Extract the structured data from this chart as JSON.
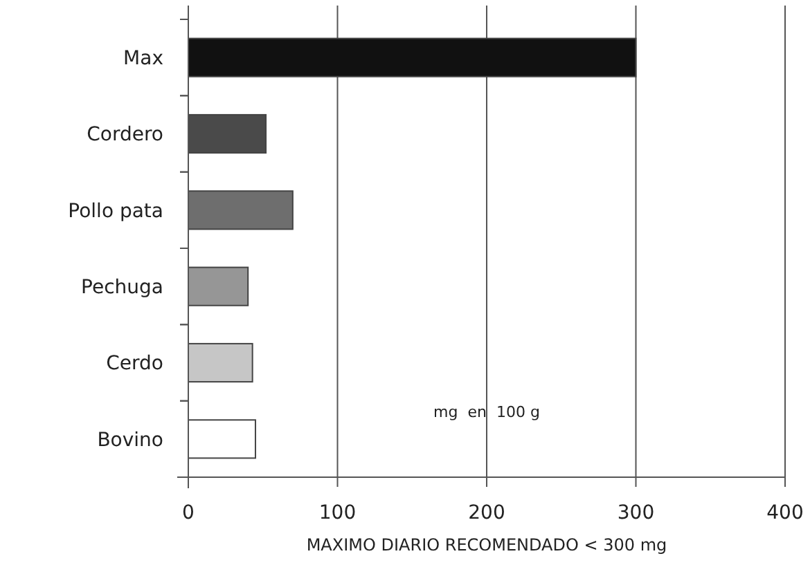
{
  "chart_data": {
    "type": "bar",
    "orientation": "horizontal",
    "categories": [
      "Max",
      "Cordero",
      "Pollo pata",
      "Pechuga",
      "Cerdo",
      "Bovino"
    ],
    "values": [
      300,
      52,
      70,
      40,
      43,
      45
    ],
    "colors": [
      "#111111",
      "#4a4a4a",
      "#6e6e6e",
      "#969696",
      "#c6c6c6",
      "#ffffff"
    ],
    "xlim": [
      0,
      400
    ],
    "xticks": [
      0,
      100,
      200,
      300,
      400
    ],
    "grid": "x",
    "xlabel": "MAXIMO DIARIO  RECOMENDADO < 300 mg",
    "annotations": [
      "mg  en  100 g"
    ]
  }
}
